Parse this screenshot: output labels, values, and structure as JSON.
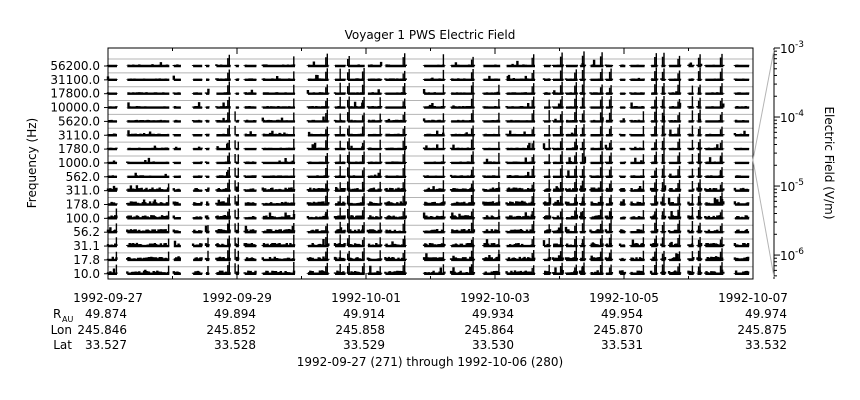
{
  "chart_data": {
    "type": "line",
    "title": "Voyager 1 PWS Electric Field",
    "ylabel": "Frequency (Hz)",
    "colorbar_label": "Electric Field (V/m)",
    "colorbar_ticks": [
      {
        "exp": "-3",
        "value": 0.001
      },
      {
        "exp": "-4",
        "value": 0.0001
      },
      {
        "exp": "-5",
        "value": 1e-05
      },
      {
        "exp": "-6",
        "value": 1e-06
      }
    ],
    "colorbar_range": [
      4.5e-07,
      0.001
    ],
    "x_range": [
      "1992-09-27",
      "1992-10-07"
    ],
    "x_ticks": [
      "1992-09-27",
      "1992-09-29",
      "1992-10-01",
      "1992-10-03",
      "1992-10-05",
      "1992-10-07"
    ],
    "x_minor_ticks": [
      "1992-09-28",
      "1992-09-30",
      "1992-10-02",
      "1992-10-04",
      "1992-10-06"
    ],
    "ephemeris": {
      "labels": {
        "r_main": "R",
        "r_sub": "AU",
        "lon": "Lon",
        "lat": "Lat"
      },
      "r_au": [
        "49.874",
        "49.894",
        "49.914",
        "49.934",
        "49.954",
        "49.974"
      ],
      "lon": [
        "245.846",
        "245.852",
        "245.858",
        "245.864",
        "245.870",
        "245.875"
      ],
      "lat": [
        "33.527",
        "33.528",
        "33.529",
        "33.530",
        "33.531",
        "33.532"
      ]
    },
    "footer": "1992-09-27 (271) through 1992-10-06 (280)",
    "channels": [
      "56200.0",
      "31100.0",
      "17800.0",
      "10000.0",
      "5620.0",
      "3110.0",
      "1780.0",
      "1000.0",
      "562.0",
      "311.0",
      "178.0",
      "100.0",
      "56.2",
      "31.1",
      "17.8",
      "10.0"
    ],
    "data_segments_days": [
      [
        0.0,
        0.14
      ],
      [
        0.3,
        0.95
      ],
      [
        1.02,
        1.13
      ],
      [
        1.32,
        1.46
      ],
      [
        1.52,
        1.57
      ],
      [
        1.68,
        1.9
      ],
      [
        1.98,
        2.03
      ],
      [
        2.12,
        2.3
      ],
      [
        2.4,
        2.9
      ],
      [
        3.1,
        3.42
      ],
      [
        3.52,
        3.68
      ],
      [
        3.72,
        3.98
      ],
      [
        4.03,
        4.24
      ],
      [
        4.3,
        4.62
      ],
      [
        4.9,
        5.22
      ],
      [
        5.32,
        5.68
      ],
      [
        5.82,
        6.08
      ],
      [
        6.18,
        6.62
      ],
      [
        6.76,
        6.86
      ],
      [
        6.9,
        7.06
      ],
      [
        7.1,
        7.28
      ],
      [
        7.32,
        7.4
      ],
      [
        7.48,
        7.68
      ],
      [
        7.72,
        7.82
      ],
      [
        7.94,
        8.02
      ],
      [
        8.1,
        8.32
      ],
      [
        8.42,
        8.52
      ],
      [
        8.58,
        8.64
      ],
      [
        8.7,
        8.88
      ],
      [
        9.0,
        9.08
      ],
      [
        9.14,
        9.2
      ],
      [
        9.26,
        9.54
      ],
      [
        9.72,
        9.94
      ]
    ],
    "bursts": [
      {
        "day": 0.13,
        "ch_low": 11,
        "ch_high": 15,
        "strength": 0.6
      },
      {
        "day": 0.94,
        "ch_low": 9,
        "ch_high": 15,
        "strength": 0.5
      },
      {
        "day": 1.55,
        "ch_low": 12,
        "ch_high": 15,
        "strength": 0.5
      },
      {
        "day": 1.88,
        "ch_low": 0,
        "ch_high": 15,
        "strength": 0.9
      },
      {
        "day": 1.97,
        "ch_low": 4,
        "ch_high": 15,
        "strength": 0.7
      },
      {
        "day": 2.02,
        "ch_low": 6,
        "ch_high": 15,
        "strength": 0.6
      },
      {
        "day": 2.88,
        "ch_low": 0,
        "ch_high": 15,
        "strength": 0.7
      },
      {
        "day": 3.4,
        "ch_low": 0,
        "ch_high": 15,
        "strength": 0.8
      },
      {
        "day": 3.6,
        "ch_low": 1,
        "ch_high": 15,
        "strength": 0.7
      },
      {
        "day": 3.74,
        "ch_low": 0,
        "ch_high": 15,
        "strength": 0.9
      },
      {
        "day": 3.97,
        "ch_low": 1,
        "ch_high": 15,
        "strength": 0.8
      },
      {
        "day": 4.22,
        "ch_low": 3,
        "ch_high": 15,
        "strength": 0.6
      },
      {
        "day": 4.6,
        "ch_low": 0,
        "ch_high": 15,
        "strength": 0.8
      },
      {
        "day": 5.2,
        "ch_low": 0,
        "ch_high": 15,
        "strength": 0.7
      },
      {
        "day": 5.66,
        "ch_low": 0,
        "ch_high": 15,
        "strength": 0.9
      },
      {
        "day": 6.06,
        "ch_low": 2,
        "ch_high": 15,
        "strength": 0.6
      },
      {
        "day": 6.6,
        "ch_low": 0,
        "ch_high": 15,
        "strength": 0.8
      },
      {
        "day": 6.84,
        "ch_low": 3,
        "ch_high": 15,
        "strength": 0.7
      },
      {
        "day": 7.04,
        "ch_low": 0,
        "ch_high": 15,
        "strength": 0.9
      },
      {
        "day": 7.26,
        "ch_low": 1,
        "ch_high": 15,
        "strength": 0.9
      },
      {
        "day": 7.38,
        "ch_low": 0,
        "ch_high": 15,
        "strength": 1.0
      },
      {
        "day": 7.66,
        "ch_low": 0,
        "ch_high": 15,
        "strength": 0.9
      },
      {
        "day": 7.8,
        "ch_low": 1,
        "ch_high": 15,
        "strength": 0.8
      },
      {
        "day": 8.3,
        "ch_low": 4,
        "ch_high": 15,
        "strength": 0.6
      },
      {
        "day": 8.5,
        "ch_low": 0,
        "ch_high": 15,
        "strength": 0.9
      },
      {
        "day": 8.62,
        "ch_low": 0,
        "ch_high": 15,
        "strength": 0.9
      },
      {
        "day": 8.86,
        "ch_low": 0,
        "ch_high": 15,
        "strength": 0.8
      },
      {
        "day": 9.06,
        "ch_low": 2,
        "ch_high": 15,
        "strength": 0.7
      },
      {
        "day": 9.18,
        "ch_low": 0,
        "ch_high": 15,
        "strength": 0.9
      },
      {
        "day": 9.52,
        "ch_low": 0,
        "ch_high": 15,
        "strength": 0.8
      }
    ]
  }
}
